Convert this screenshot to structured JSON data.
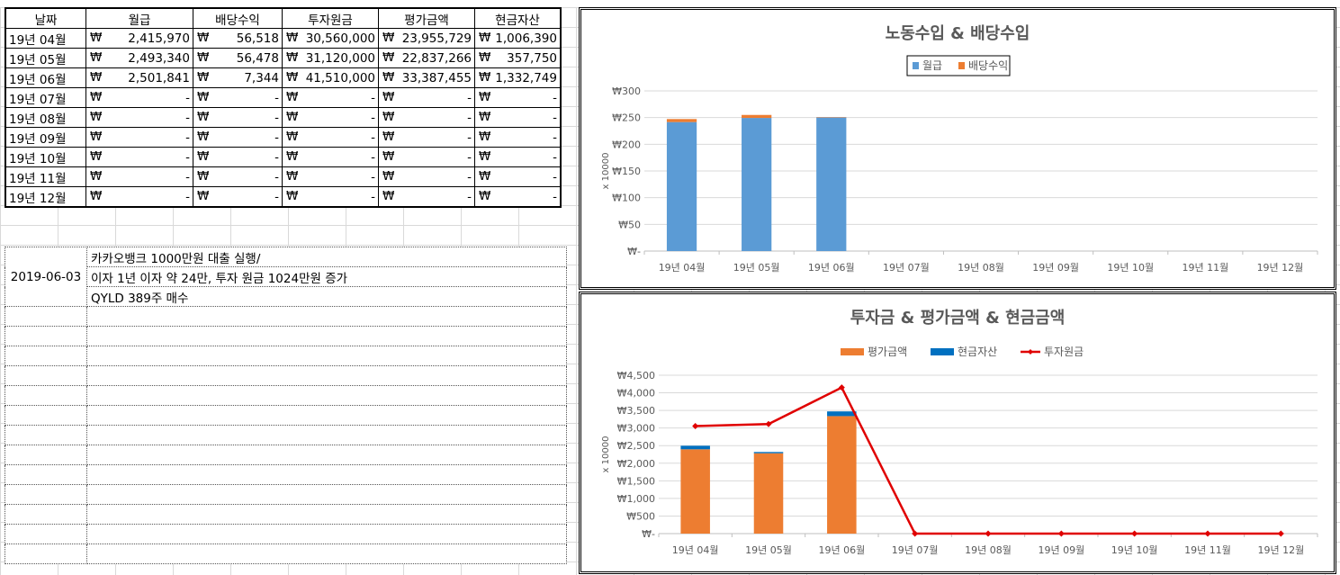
{
  "table": {
    "headers": [
      "날짜",
      "월급",
      "배당수익",
      "투자원금",
      "평가금액",
      "현금자산"
    ],
    "currency_symbol": "₩",
    "rows": [
      {
        "date": "19년 04월",
        "salary": "2,415,970",
        "dividend": "56,518",
        "invest": "30,560,000",
        "eval": "23,955,729",
        "cash": "1,006,390"
      },
      {
        "date": "19년 05월",
        "salary": "2,493,340",
        "dividend": "56,478",
        "invest": "31,120,000",
        "eval": "22,837,266",
        "cash": "357,750"
      },
      {
        "date": "19년 06월",
        "salary": "2,501,841",
        "dividend": "7,344",
        "invest": "41,510,000",
        "eval": "33,387,455",
        "cash": "1,332,749"
      },
      {
        "date": "19년 07월",
        "salary": "-",
        "dividend": "-",
        "invest": "-",
        "eval": "-",
        "cash": "-"
      },
      {
        "date": "19년 08월",
        "salary": "-",
        "dividend": "-",
        "invest": "-",
        "eval": "-",
        "cash": "-"
      },
      {
        "date": "19년 09월",
        "salary": "-",
        "dividend": "-",
        "invest": "-",
        "eval": "-",
        "cash": "-"
      },
      {
        "date": "19년 10월",
        "salary": "-",
        "dividend": "-",
        "invest": "-",
        "eval": "-",
        "cash": "-"
      },
      {
        "date": "19년 11월",
        "salary": "-",
        "dividend": "-",
        "invest": "-",
        "eval": "-",
        "cash": "-"
      },
      {
        "date": "19년 12월",
        "salary": "-",
        "dividend": "-",
        "invest": "-",
        "eval": "-",
        "cash": "-"
      }
    ]
  },
  "memo": {
    "date": "2019-06-03",
    "lines": [
      "카카오뱅크 1000만원 대출 실행/",
      "이자 1년 이자 약 24만, 투자 원금 1024만원 증가",
      "QYLD 389주 매수"
    ]
  },
  "chart_data": [
    {
      "type": "bar",
      "stacked": true,
      "title": "노동수입 & 배당수입",
      "ylabel": "x 10000",
      "legend_position": "top",
      "grid": true,
      "categories": [
        "19년 04월",
        "19년 05월",
        "19년 06월",
        "19년 07월",
        "19년 08월",
        "19년 09월",
        "19년 10월",
        "19년 11월",
        "19년 12월"
      ],
      "ylim": [
        0,
        300
      ],
      "yticks": [
        "₩-",
        "₩50",
        "₩100",
        "₩150",
        "₩200",
        "₩250",
        "₩300"
      ],
      "series": [
        {
          "name": "월급",
          "color": "#5B9BD5",
          "values": [
            241.6,
            249.3,
            250.2,
            0,
            0,
            0,
            0,
            0,
            0
          ]
        },
        {
          "name": "배당수익",
          "color": "#ED7D31",
          "values": [
            5.65,
            5.65,
            0.73,
            0,
            0,
            0,
            0,
            0,
            0
          ]
        }
      ]
    },
    {
      "type": "bar",
      "stacked": true,
      "title": "투자금 & 평가금액 & 현금금액",
      "ylabel": "x 10000",
      "legend_position": "top",
      "grid": true,
      "categories": [
        "19년 04월",
        "19년 05월",
        "19년 06월",
        "19년 07월",
        "19년 08월",
        "19년 09월",
        "19년 10월",
        "19년 11월",
        "19년 12월"
      ],
      "ylim": [
        0,
        4500
      ],
      "yticks": [
        "₩-",
        "₩500",
        "₩1,000",
        "₩1,500",
        "₩2,000",
        "₩2,500",
        "₩3,000",
        "₩3,500",
        "₩4,000",
        "₩4,500"
      ],
      "series": [
        {
          "name": "평가금액",
          "kind": "bar",
          "color": "#ED7D31",
          "values": [
            2395.6,
            2283.7,
            3338.7,
            0,
            0,
            0,
            0,
            0,
            0
          ]
        },
        {
          "name": "현금자산",
          "kind": "bar",
          "color": "#0070C0",
          "values": [
            100.6,
            35.8,
            133.3,
            0,
            0,
            0,
            0,
            0,
            0
          ]
        },
        {
          "name": "투자원금",
          "kind": "line",
          "color": "#E00000",
          "values": [
            3056,
            3112,
            4151,
            0,
            0,
            0,
            0,
            0,
            0
          ]
        }
      ]
    }
  ]
}
